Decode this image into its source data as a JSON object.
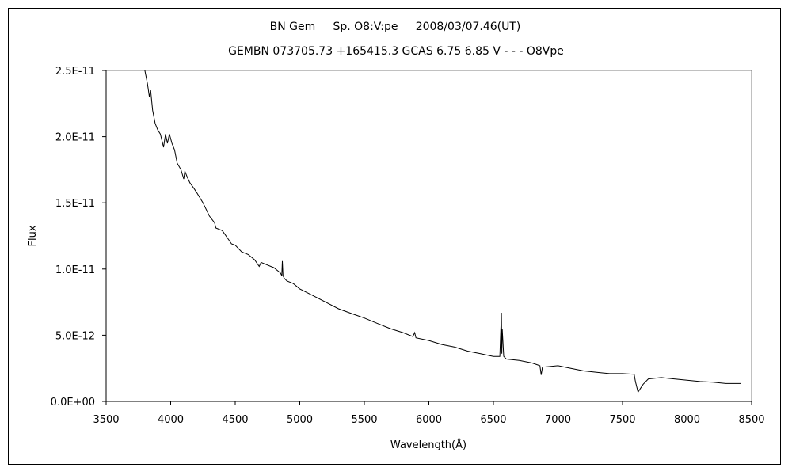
{
  "chart_data": {
    "type": "line",
    "title": "BN Gem     Sp. O8:V:pe     2008/03/07.46(UT)",
    "subtitle": "GEMBN 073705.73 +165415.3 GCAS 6.75 6.85 V - - - O8Vpe",
    "xlabel": "Wavelength(Å)",
    "ylabel": "Flux",
    "xlim": [
      3500,
      8500
    ],
    "ylim": [
      0,
      2.5e-11
    ],
    "xticks": [
      3500,
      4000,
      4500,
      5000,
      5500,
      6000,
      6500,
      7000,
      7500,
      8000,
      8500
    ],
    "xtick_labels": [
      "3500",
      "4000",
      "4500",
      "5000",
      "5500",
      "6000",
      "6500",
      "7000",
      "7500",
      "8000",
      "8500"
    ],
    "yticks": [
      0,
      5e-12,
      1e-11,
      1.5e-11,
      2e-11,
      2.5e-11
    ],
    "ytick_labels": [
      "0.0E+00",
      "5.0E-12",
      "1.0E-11",
      "1.5E-11",
      "2.0E-11",
      "2.5E-11"
    ],
    "grid": false,
    "legend": "none",
    "line_color": "#000000",
    "series": [
      {
        "x": [
          3800,
          3820,
          3835,
          3845,
          3860,
          3880,
          3900,
          3920,
          3945,
          3960,
          3975,
          3990,
          4010,
          4030,
          4050,
          4080,
          4101,
          4110,
          4130,
          4150,
          4180,
          4200,
          4250,
          4300,
          4340,
          4350,
          4400,
          4450,
          4471,
          4500,
          4550,
          4600,
          4650,
          4686,
          4700,
          4750,
          4800,
          4850,
          4861,
          4865,
          4870,
          4880,
          4900,
          4950,
          5000,
          5100,
          5200,
          5300,
          5411,
          5500,
          5600,
          5700,
          5800,
          5876,
          5890,
          5900,
          6000,
          6100,
          6200,
          6300,
          6400,
          6500,
          6550,
          6562,
          6565,
          6568,
          6580,
          6600,
          6700,
          6800,
          6860,
          6870,
          6880,
          6890,
          6900,
          7000,
          7100,
          7200,
          7300,
          7400,
          7500,
          7590,
          7600,
          7620,
          7640,
          7660,
          7700,
          7800,
          7900,
          8000,
          8100,
          8200,
          8300,
          8400,
          8420
        ],
        "y": [
          2.5e-11,
          2.4e-11,
          2.3e-11,
          2.35e-11,
          2.2e-11,
          2.1e-11,
          2.05e-11,
          2.02e-11,
          1.92e-11,
          2.02e-11,
          1.95e-11,
          2.02e-11,
          1.95e-11,
          1.9e-11,
          1.8e-11,
          1.75e-11,
          1.68e-11,
          1.74e-11,
          1.69e-11,
          1.65e-11,
          1.61e-11,
          1.58e-11,
          1.5e-11,
          1.4e-11,
          1.35e-11,
          1.31e-11,
          1.29e-11,
          1.22e-11,
          1.19e-11,
          1.18e-11,
          1.13e-11,
          1.11e-11,
          1.07e-11,
          1.02e-11,
          1.05e-11,
          1.03e-11,
          1.01e-11,
          9.7e-12,
          9.5e-12,
          1.06e-11,
          9.5e-12,
          9.3e-12,
          9.1e-12,
          8.9e-12,
          8.5e-12,
          8e-12,
          7.5e-12,
          7e-12,
          6.6e-12,
          6.3e-12,
          5.9e-12,
          5.5e-12,
          5.2e-12,
          4.9e-12,
          5.2e-12,
          4.8e-12,
          4.6e-12,
          4.3e-12,
          4.1e-12,
          3.8e-12,
          3.6e-12,
          3.4e-12,
          3.4e-12,
          6.7e-12,
          3.6e-12,
          5.5e-12,
          3.4e-12,
          3.2e-12,
          3.1e-12,
          2.9e-12,
          2.7e-12,
          2e-12,
          2.6e-12,
          2.6e-12,
          2.6e-12,
          2.7e-12,
          2.5e-12,
          2.3e-12,
          2.2e-12,
          2.1e-12,
          2.1e-12,
          2.05e-12,
          1.5e-12,
          7e-13,
          1e-12,
          1.3e-12,
          1.7e-12,
          1.8e-12,
          1.7e-12,
          1.6e-12,
          1.5e-12,
          1.45e-12,
          1.35e-12,
          1.35e-12,
          1.35e-12
        ]
      }
    ]
  }
}
